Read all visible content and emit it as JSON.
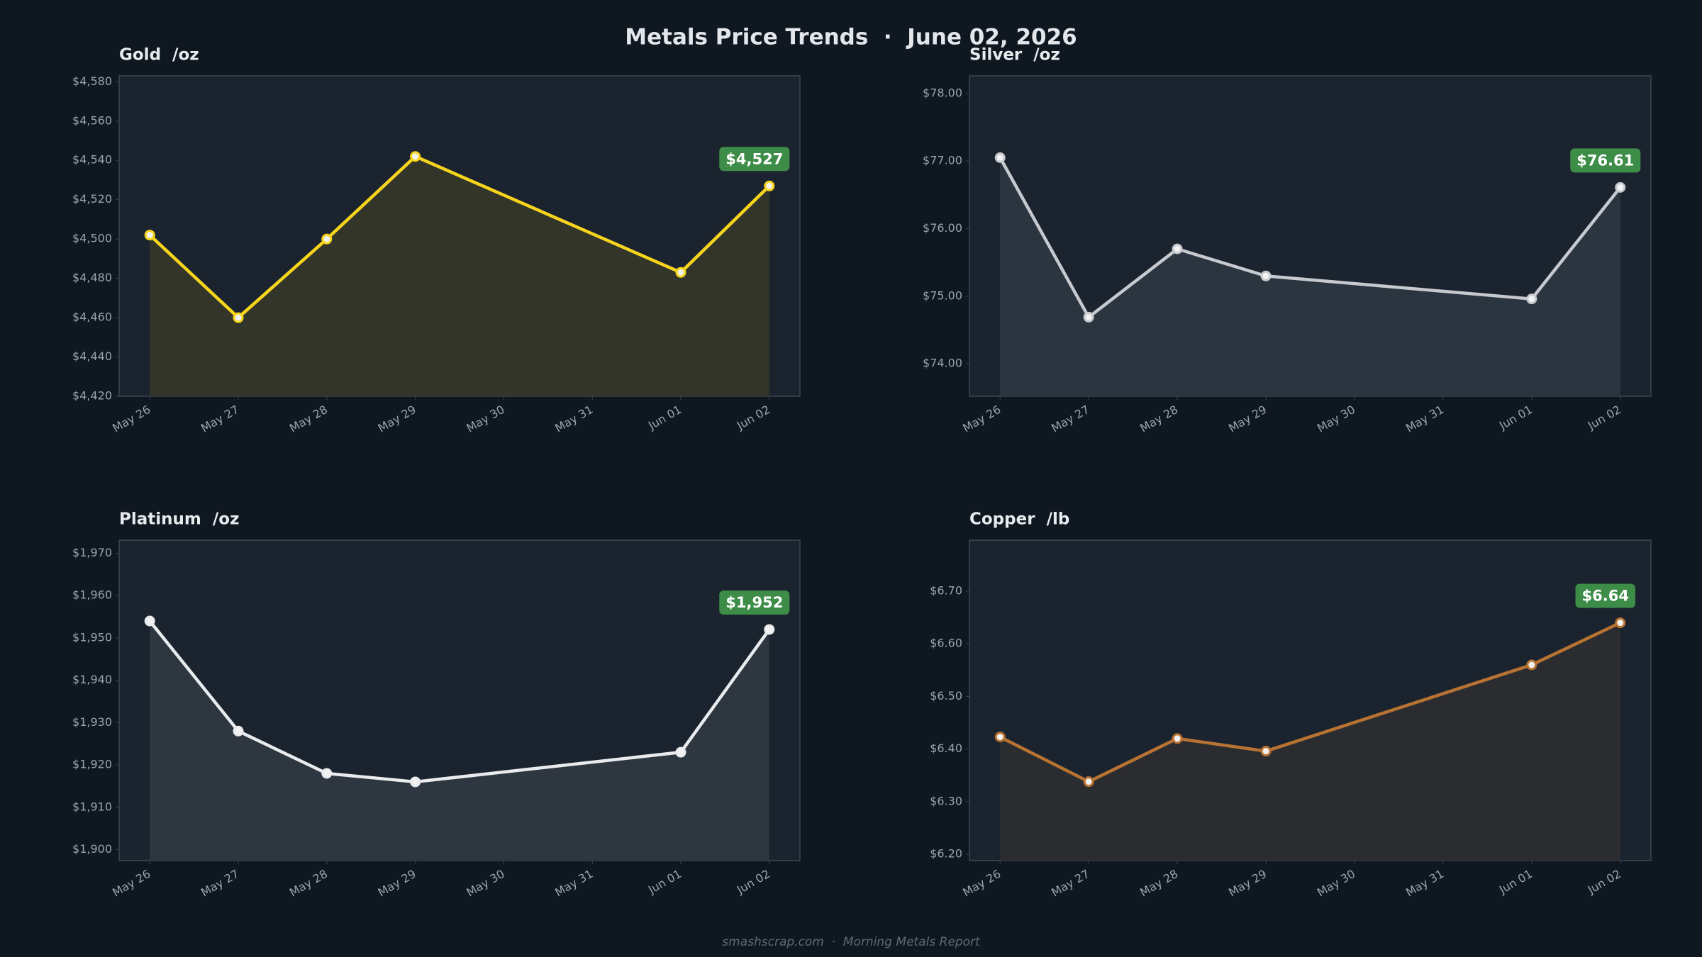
{
  "title": "Metals Price Trends  ·  June 02, 2026",
  "footer": "smashscrap.com  ·  Morning Metals Report",
  "chart_data": [
    {
      "type": "line",
      "title": "Gold  /oz",
      "x": [
        "May 26",
        "May 27",
        "May 28",
        "May 29",
        "Jun 01",
        "Jun 02"
      ],
      "xticks": [
        "May 26",
        "May 27",
        "May 28",
        "May 29",
        "May 30",
        "May 31",
        "Jun 01",
        "Jun 02"
      ],
      "values": [
        4502,
        4460,
        4500,
        4542,
        4483,
        4527
      ],
      "value_labels": [
        null,
        null,
        null,
        null,
        null,
        "$4,527"
      ],
      "color": "#f7d51d",
      "area_color": "#33352a",
      "ylim": [
        4420,
        4583
      ],
      "yticks": [
        {
          "value": 4420,
          "label": "$4,420"
        },
        {
          "value": 4440,
          "label": "$4,440"
        },
        {
          "value": 4460,
          "label": "$4,460"
        },
        {
          "value": 4480,
          "label": "$4,480"
        },
        {
          "value": 4500,
          "label": "$4,500"
        },
        {
          "value": 4520,
          "label": "$4,520"
        },
        {
          "value": 4540,
          "label": "$4,540"
        },
        {
          "value": 4560,
          "label": "$4,560"
        },
        {
          "value": 4580,
          "label": "$4,580"
        }
      ]
    },
    {
      "type": "line",
      "title": "Silver  /oz",
      "x": [
        "May 26",
        "May 27",
        "May 28",
        "May 29",
        "Jun 01",
        "Jun 02"
      ],
      "xticks": [
        "May 26",
        "May 27",
        "May 28",
        "May 29",
        "May 30",
        "May 31",
        "Jun 01",
        "Jun 02"
      ],
      "values": [
        77.05,
        74.69,
        75.7,
        75.3,
        74.96,
        76.61
      ],
      "value_labels": [
        null,
        null,
        null,
        null,
        null,
        "$76.61"
      ],
      "color": "#c6c9ce",
      "area_color": "#2b3540",
      "ylim": [
        73.52,
        78.26
      ],
      "yticks": [
        {
          "value": 74,
          "label": "$74.00"
        },
        {
          "value": 75,
          "label": "$75.00"
        },
        {
          "value": 76,
          "label": "$76.00"
        },
        {
          "value": 77,
          "label": "$77.00"
        },
        {
          "value": 78,
          "label": "$78.00"
        }
      ]
    },
    {
      "type": "line",
      "title": "Platinum  /oz",
      "x": [
        "May 26",
        "May 27",
        "May 28",
        "May 29",
        "Jun 01",
        "Jun 02"
      ],
      "xticks": [
        "May 26",
        "May 27",
        "May 28",
        "May 29",
        "May 30",
        "May 31",
        "Jun 01",
        "Jun 02"
      ],
      "values": [
        1954,
        1928,
        1918,
        1916,
        1923,
        1952
      ],
      "value_labels": [
        null,
        null,
        null,
        null,
        null,
        "$1,952"
      ],
      "color": "#e9ebee",
      "area_color": "#2e3740",
      "ylim": [
        1897.4,
        1973.1
      ],
      "yticks": [
        {
          "value": 1900,
          "label": "$1,900"
        },
        {
          "value": 1910,
          "label": "$1,910"
        },
        {
          "value": 1920,
          "label": "$1,920"
        },
        {
          "value": 1930,
          "label": "$1,930"
        },
        {
          "value": 1940,
          "label": "$1,940"
        },
        {
          "value": 1950,
          "label": "$1,950"
        },
        {
          "value": 1960,
          "label": "$1,960"
        },
        {
          "value": 1970,
          "label": "$1,970"
        }
      ]
    },
    {
      "type": "line",
      "title": "Copper  /lb",
      "x": [
        "May 26",
        "May 27",
        "May 28",
        "May 29",
        "Jun 01",
        "Jun 02"
      ],
      "xticks": [
        "May 26",
        "May 27",
        "May 28",
        "May 29",
        "May 30",
        "May 31",
        "Jun 01",
        "Jun 02"
      ],
      "values": [
        6.423,
        6.338,
        6.42,
        6.396,
        6.56,
        6.64
      ],
      "value_labels": [
        null,
        null,
        null,
        null,
        null,
        "$6.64"
      ],
      "color": "#b87333",
      "area_color": "#2b2c2f",
      "ylim": [
        6.188,
        6.797
      ],
      "yticks": [
        {
          "value": 6.2,
          "label": "$6.20"
        },
        {
          "value": 6.3,
          "label": "$6.30"
        },
        {
          "value": 6.4,
          "label": "$6.40"
        },
        {
          "value": 6.5,
          "label": "$6.50"
        },
        {
          "value": 6.6,
          "label": "$6.60"
        },
        {
          "value": 6.7,
          "label": "$6.70"
        }
      ]
    }
  ]
}
